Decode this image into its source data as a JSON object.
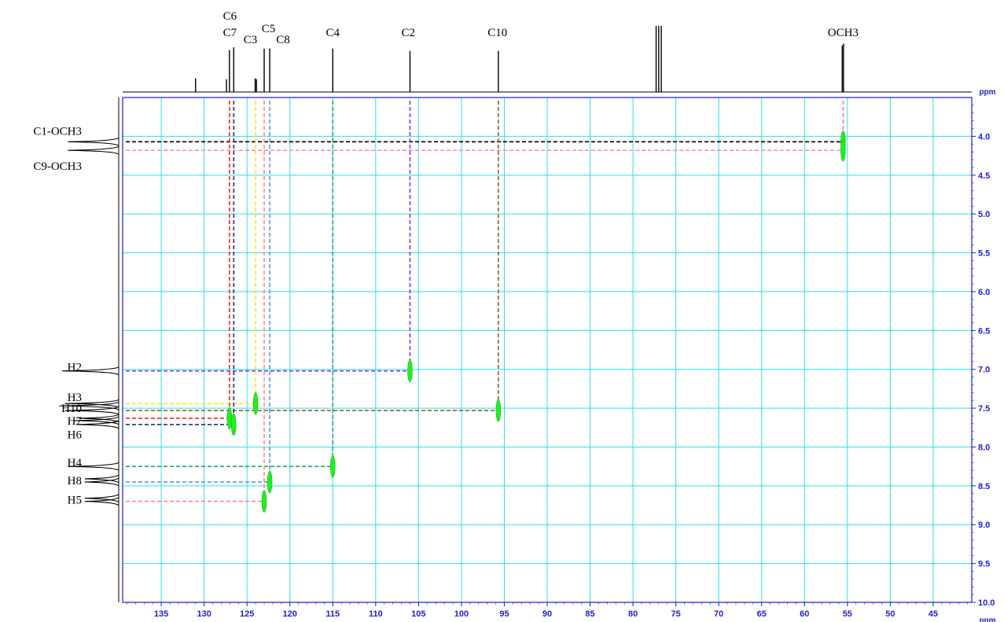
{
  "chart_data": {
    "type": "heatmap",
    "x_axis": {
      "unit": "ppm",
      "range": [
        139.5,
        40.5
      ],
      "reversed": true,
      "ticks": [
        135,
        130,
        125,
        120,
        115,
        110,
        105,
        100,
        95,
        90,
        85,
        80,
        75,
        70,
        65,
        60,
        55,
        50,
        45
      ]
    },
    "y_axis": {
      "unit": "ppm",
      "range": [
        3.5,
        10.0
      ],
      "reversed": true,
      "ticks": [
        4.0,
        4.5,
        5.0,
        5.5,
        6.0,
        6.5,
        7.0,
        7.5,
        8.0,
        8.5,
        9.0,
        9.5,
        10.0
      ]
    },
    "grid": true,
    "grid_color": "#2fe0e0",
    "cross_peak_color": "#22ee22",
    "top_spectrum": {
      "labels": [
        {
          "text": "C6",
          "ppm": 127.0,
          "row": 0
        },
        {
          "text": "C7",
          "ppm": 127.0,
          "row": 1
        },
        {
          "text": "C3",
          "ppm": 124.6,
          "row": 2
        },
        {
          "text": "C5",
          "ppm": 122.5,
          "row": 1.5
        },
        {
          "text": "C8",
          "ppm": 120.8,
          "row": 2
        },
        {
          "text": "C4",
          "ppm": 115.0,
          "row": 1
        },
        {
          "text": "C2",
          "ppm": 106.2,
          "row": 1
        },
        {
          "text": "C10",
          "ppm": 95.8,
          "row": 1
        },
        {
          "text": "OCH3",
          "ppm": 55.5,
          "row": 1
        }
      ],
      "peaks": [
        {
          "ppm": 131.0,
          "h": 0.3
        },
        {
          "ppm": 127.4,
          "h": 0.28
        },
        {
          "ppm": 127.05,
          "h": 0.92
        },
        {
          "ppm": 126.55,
          "h": 0.98
        },
        {
          "ppm": 124.05,
          "h": 0.3
        },
        {
          "ppm": 123.9,
          "h": 0.28
        },
        {
          "ppm": 123.0,
          "h": 0.95
        },
        {
          "ppm": 122.35,
          "h": 0.95
        },
        {
          "ppm": 115.0,
          "h": 0.95
        },
        {
          "ppm": 106.0,
          "h": 0.9
        },
        {
          "ppm": 95.7,
          "h": 0.9
        },
        {
          "ppm": 77.3,
          "h": 1.45
        },
        {
          "ppm": 77.0,
          "h": 1.45
        },
        {
          "ppm": 76.7,
          "h": 1.45
        },
        {
          "ppm": 55.6,
          "h": 1.02
        },
        {
          "ppm": 55.45,
          "h": 1.06
        }
      ]
    },
    "left_spectrum": {
      "labels": [
        {
          "text": "C1-OCH3",
          "ppm": 3.93
        },
        {
          "text": "C9-OCH3",
          "ppm": 4.38
        },
        {
          "text": "H2",
          "ppm": 6.97
        },
        {
          "text": "H3",
          "ppm": 7.36
        },
        {
          "text": "H10",
          "ppm": 7.5
        },
        {
          "text": "H7",
          "ppm": 7.66
        },
        {
          "text": "H6",
          "ppm": 7.84
        },
        {
          "text": "H4",
          "ppm": 8.2
        },
        {
          "text": "H8",
          "ppm": 8.43
        },
        {
          "text": "H5",
          "ppm": 8.68
        }
      ],
      "peaks": [
        {
          "ppm": 4.07,
          "h": 0.9
        },
        {
          "ppm": 4.18,
          "h": 0.9
        },
        {
          "ppm": 7.02,
          "h": 1.0
        },
        {
          "ppm": 7.44,
          "h": 0.95
        },
        {
          "ppm": 7.47,
          "h": 1.05
        },
        {
          "ppm": 7.53,
          "h": 0.95
        },
        {
          "ppm": 7.63,
          "h": 0.7
        },
        {
          "ppm": 7.66,
          "h": 0.8
        },
        {
          "ppm": 7.71,
          "h": 0.75
        },
        {
          "ppm": 8.25,
          "h": 0.9
        },
        {
          "ppm": 8.41,
          "h": 0.6
        },
        {
          "ppm": 8.45,
          "h": 0.6
        },
        {
          "ppm": 8.66,
          "h": 0.6
        },
        {
          "ppm": 8.7,
          "h": 0.6
        }
      ]
    },
    "cross_peaks": [
      {
        "c": 55.5,
        "h": 4.07,
        "color": "#000000"
      },
      {
        "c": 55.5,
        "h": 4.18,
        "color": "#ff88cc"
      },
      {
        "c": 106.0,
        "h": 7.02,
        "color": "#8833dd"
      },
      {
        "c": 124.0,
        "h": 7.44,
        "color": "#eeee22"
      },
      {
        "c": 95.7,
        "h": 7.53,
        "color": "#886633"
      },
      {
        "c": 127.05,
        "h": 7.63,
        "color": "#ff2222"
      },
      {
        "c": 126.55,
        "h": 7.71,
        "color": "#223388"
      },
      {
        "c": 115.0,
        "h": 8.25,
        "color": "#22aa66"
      },
      {
        "c": 122.35,
        "h": 8.45,
        "color": "#5599dd"
      },
      {
        "c": 123.0,
        "h": 8.7,
        "color": "#ff8888"
      }
    ]
  }
}
